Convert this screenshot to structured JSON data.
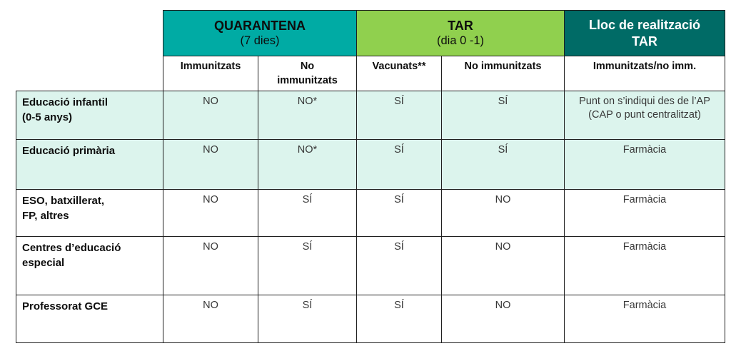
{
  "table": {
    "top_headers": {
      "quarantena": {
        "title": "QUARANTENA",
        "subtitle": "(7 dies)"
      },
      "tar": {
        "title": "TAR",
        "subtitle": "(dia 0 -1)"
      },
      "lloc": {
        "title": "Lloc de realització\nTAR"
      }
    },
    "sub_headers": [
      "Immunitzats",
      "No\nimmunitzats",
      "Vacunats**",
      "No immunitzats",
      "Immunitzats/no imm."
    ],
    "rows": [
      {
        "label": "Educació infantil\n(0-5 anys)",
        "cells": [
          "NO",
          "NO*",
          "SÍ",
          "SÍ",
          "Punt on s’indiqui des de l’AP (CAP o punt centralitzat)"
        ],
        "highlighted": true
      },
      {
        "label": "Educació primària",
        "cells": [
          "NO",
          "NO*",
          "SÍ",
          "SÍ",
          "Farmàcia"
        ],
        "highlighted": true
      },
      {
        "label": "ESO, batxillerat,\nFP, altres",
        "cells": [
          "NO",
          "SÍ",
          "SÍ",
          "NO",
          "Farmàcia"
        ],
        "highlighted": false
      },
      {
        "label": "Centres d’educació\nespecial",
        "cells": [
          "NO",
          "SÍ",
          "SÍ",
          "NO",
          "Farmàcia"
        ],
        "highlighted": false
      },
      {
        "label": "Professorat GCE",
        "cells": [
          "NO",
          "SÍ",
          "SÍ",
          "NO",
          "Farmàcia"
        ],
        "highlighted": false
      }
    ],
    "colors": {
      "quarantena_header": "#00aba4",
      "tar_header": "#90d04e",
      "lloc_header": "#006b66",
      "highlight_row": "#dcf4ed",
      "border": "#1f1f1f"
    }
  }
}
